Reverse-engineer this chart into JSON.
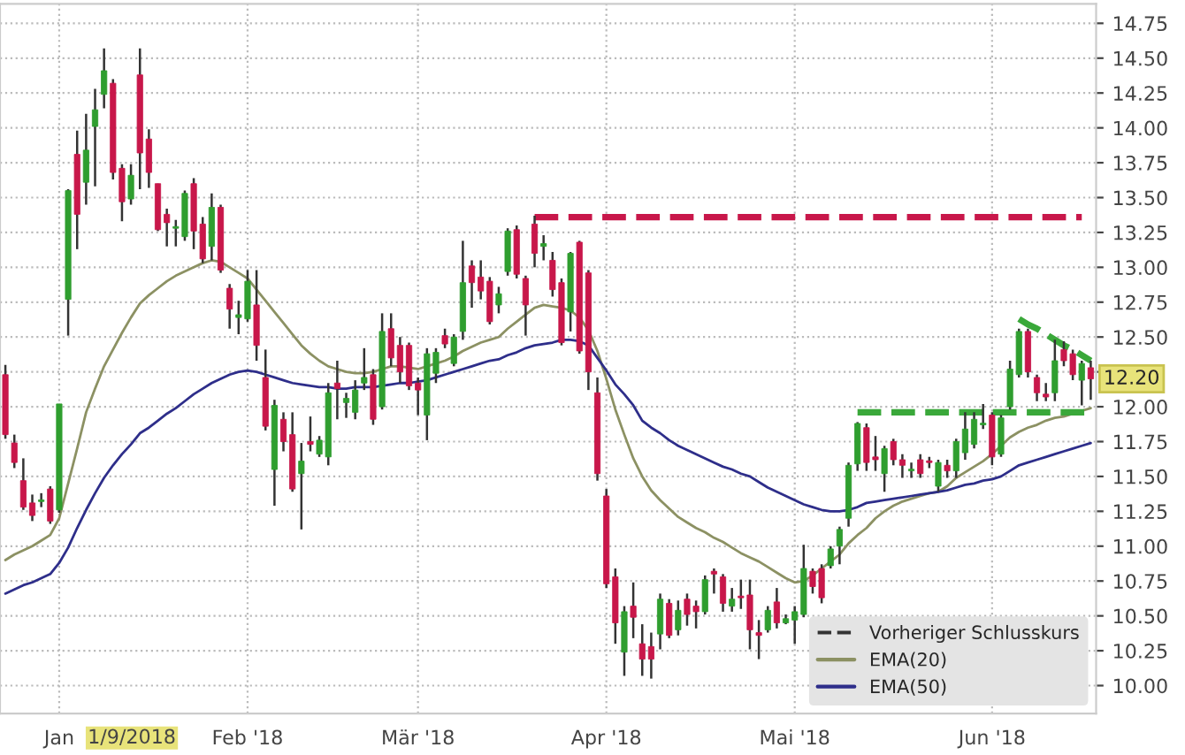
{
  "chart_data": {
    "type": "candlestick",
    "categories": [
      null,
      null,
      null,
      null,
      null,
      null,
      "Jan",
      null,
      null,
      null,
      null,
      null,
      null,
      null,
      null,
      null,
      null,
      null,
      null,
      null,
      null,
      null,
      null,
      null,
      null,
      null,
      null,
      "Feb '18",
      null,
      null,
      null,
      null,
      null,
      null,
      null,
      null,
      null,
      null,
      null,
      null,
      null,
      null,
      null,
      null,
      null,
      null,
      "Mär '18",
      null,
      null,
      null,
      null,
      null,
      null,
      null,
      null,
      null,
      null,
      null,
      null,
      null,
      null,
      null,
      null,
      null,
      null,
      null,
      null,
      "Apr '18",
      null,
      null,
      null,
      null,
      null,
      null,
      null,
      null,
      null,
      null,
      null,
      null,
      null,
      null,
      null,
      null,
      null,
      null,
      null,
      null,
      "Mai '18",
      null,
      null,
      null,
      null,
      null,
      null,
      null,
      null,
      null,
      null,
      null,
      null,
      null,
      null,
      null,
      null,
      null,
      null,
      null,
      null,
      null,
      "Jun '18",
      null,
      null,
      null,
      null,
      null,
      null,
      null,
      null,
      null,
      null,
      null
    ],
    "ohlc": [
      [
        12.23,
        12.3,
        11.77,
        11.8
      ],
      [
        11.74,
        11.8,
        11.56,
        11.6
      ],
      [
        11.47,
        11.63,
        11.26,
        11.28
      ],
      [
        11.31,
        11.37,
        11.18,
        11.22
      ],
      [
        11.32,
        11.38,
        11.28,
        11.33
      ],
      [
        11.41,
        11.43,
        11.16,
        11.18
      ],
      [
        11.26,
        12.02,
        11.24,
        12.02
      ],
      [
        12.77,
        13.56,
        12.51,
        13.55
      ],
      [
        13.81,
        13.98,
        13.13,
        13.38
      ],
      [
        13.61,
        14.1,
        13.45,
        13.84
      ],
      [
        14.01,
        14.28,
        13.58,
        14.13
      ],
      [
        14.24,
        14.57,
        14.14,
        14.41
      ],
      [
        14.32,
        14.35,
        13.63,
        13.68
      ],
      [
        13.71,
        13.74,
        13.33,
        13.47
      ],
      [
        13.49,
        13.74,
        13.45,
        13.66
      ],
      [
        14.38,
        14.57,
        13.56,
        13.82
      ],
      [
        13.92,
        13.99,
        13.57,
        13.68
      ],
      [
        13.6,
        13.6,
        13.26,
        13.27
      ],
      [
        13.38,
        13.42,
        13.15,
        13.32
      ],
      [
        13.28,
        13.34,
        13.15,
        13.29
      ],
      [
        13.22,
        13.55,
        13.19,
        13.53
      ],
      [
        13.6,
        13.64,
        13.13,
        13.26
      ],
      [
        13.31,
        13.36,
        13.03,
        13.06
      ],
      [
        13.15,
        13.53,
        13.05,
        13.43
      ],
      [
        13.43,
        13.45,
        12.96,
        12.98
      ],
      [
        12.85,
        12.88,
        12.56,
        12.7
      ],
      [
        12.64,
        12.76,
        12.52,
        12.66
      ],
      [
        12.63,
        12.98,
        12.61,
        12.9
      ],
      [
        12.73,
        12.98,
        12.33,
        12.44
      ],
      [
        12.21,
        12.41,
        11.83,
        11.86
      ],
      [
        11.55,
        12.05,
        11.29,
        12.01
      ],
      [
        11.91,
        11.96,
        11.68,
        11.75
      ],
      [
        11.8,
        11.96,
        11.39,
        11.41
      ],
      [
        11.52,
        11.74,
        11.12,
        11.61
      ],
      [
        11.75,
        11.93,
        11.68,
        11.73
      ],
      [
        11.66,
        11.79,
        11.64,
        11.76
      ],
      [
        11.64,
        12.17,
        11.58,
        12.1
      ],
      [
        12.17,
        12.33,
        11.91,
        12.13
      ],
      [
        12.03,
        12.1,
        11.92,
        12.06
      ],
      [
        11.96,
        12.19,
        11.91,
        12.12
      ],
      [
        12.17,
        12.42,
        12.12,
        12.21
      ],
      [
        12.23,
        12.27,
        11.87,
        11.91
      ],
      [
        12.0,
        12.67,
        11.98,
        12.54
      ],
      [
        12.56,
        12.67,
        12.29,
        12.35
      ],
      [
        12.44,
        12.5,
        12.17,
        12.25
      ],
      [
        12.44,
        12.46,
        12.12,
        12.15
      ],
      [
        12.17,
        12.21,
        11.94,
        12.12
      ],
      [
        11.94,
        12.42,
        11.76,
        12.38
      ],
      [
        12.24,
        12.42,
        12.17,
        12.39
      ],
      [
        12.51,
        12.56,
        12.42,
        12.45
      ],
      [
        12.31,
        12.52,
        12.29,
        12.5
      ],
      [
        12.54,
        13.19,
        12.48,
        12.89
      ],
      [
        13.01,
        13.05,
        12.71,
        12.89
      ],
      [
        12.93,
        13.05,
        12.77,
        12.83
      ],
      [
        12.9,
        12.93,
        12.59,
        12.61
      ],
      [
        12.73,
        12.86,
        12.67,
        12.81
      ],
      [
        12.97,
        13.28,
        12.94,
        13.26
      ],
      [
        13.27,
        13.3,
        12.92,
        12.95
      ],
      [
        12.92,
        12.94,
        12.51,
        12.73
      ],
      [
        13.31,
        13.37,
        13.0,
        13.1
      ],
      [
        13.15,
        13.23,
        13.05,
        13.17
      ],
      [
        13.05,
        13.11,
        12.79,
        12.84
      ],
      [
        12.89,
        12.92,
        12.44,
        12.46
      ],
      [
        12.68,
        13.11,
        12.54,
        13.1
      ],
      [
        13.18,
        13.19,
        12.38,
        12.4
      ],
      [
        12.96,
        12.98,
        12.12,
        12.25
      ],
      [
        12.1,
        12.21,
        11.47,
        11.52
      ],
      [
        11.36,
        11.41,
        10.7,
        10.73
      ],
      [
        10.78,
        10.84,
        10.3,
        10.45
      ],
      [
        10.24,
        10.57,
        10.07,
        10.53
      ],
      [
        10.57,
        10.74,
        10.34,
        10.49
      ],
      [
        10.3,
        10.44,
        10.07,
        10.19
      ],
      [
        10.28,
        10.38,
        10.05,
        10.19
      ],
      [
        10.37,
        10.66,
        10.26,
        10.62
      ],
      [
        10.59,
        10.62,
        10.34,
        10.36
      ],
      [
        10.4,
        10.61,
        10.36,
        10.54
      ],
      [
        10.62,
        10.66,
        10.43,
        10.51
      ],
      [
        10.57,
        10.61,
        10.41,
        10.53
      ],
      [
        10.53,
        10.79,
        10.51,
        10.76
      ],
      [
        10.82,
        10.84,
        10.66,
        10.8
      ],
      [
        10.78,
        10.8,
        10.53,
        10.59
      ],
      [
        10.57,
        10.7,
        10.53,
        10.62
      ],
      [
        10.64,
        10.76,
        10.55,
        10.63
      ],
      [
        10.65,
        10.76,
        10.26,
        10.4
      ],
      [
        10.38,
        10.47,
        10.19,
        10.36
      ],
      [
        10.4,
        10.57,
        10.38,
        10.54
      ],
      [
        10.6,
        10.7,
        10.41,
        10.45
      ],
      [
        10.45,
        10.51,
        10.44,
        10.48
      ],
      [
        10.47,
        10.57,
        10.3,
        10.53
      ],
      [
        10.51,
        11.01,
        10.49,
        10.84
      ],
      [
        10.82,
        10.84,
        10.66,
        10.71
      ],
      [
        10.84,
        10.87,
        10.59,
        10.63
      ],
      [
        10.86,
        11.0,
        10.84,
        10.98
      ],
      [
        11.0,
        11.14,
        10.87,
        11.12
      ],
      [
        11.2,
        11.6,
        11.14,
        11.58
      ],
      [
        11.59,
        11.89,
        11.54,
        11.88
      ],
      [
        11.85,
        11.88,
        11.54,
        11.6
      ],
      [
        11.64,
        11.79,
        11.54,
        11.62
      ],
      [
        11.52,
        11.72,
        11.39,
        11.7
      ],
      [
        11.75,
        11.77,
        11.58,
        11.62
      ],
      [
        11.62,
        11.66,
        11.49,
        11.58
      ],
      [
        11.54,
        11.6,
        11.49,
        11.55
      ],
      [
        11.62,
        11.66,
        11.49,
        11.52
      ],
      [
        11.61,
        11.64,
        11.56,
        11.6
      ],
      [
        11.43,
        11.62,
        11.39,
        11.6
      ],
      [
        11.58,
        11.62,
        11.49,
        11.54
      ],
      [
        11.54,
        11.77,
        11.49,
        11.75
      ],
      [
        11.67,
        11.96,
        11.62,
        11.84
      ],
      [
        11.73,
        11.96,
        11.7,
        11.91
      ],
      [
        11.87,
        12.02,
        11.84,
        11.88
      ],
      [
        11.94,
        11.96,
        11.58,
        11.64
      ],
      [
        11.66,
        11.94,
        11.64,
        11.92
      ],
      [
        12.0,
        12.33,
        11.98,
        12.27
      ],
      [
        12.23,
        12.56,
        12.21,
        12.54
      ],
      [
        12.54,
        12.56,
        12.21,
        12.25
      ],
      [
        12.21,
        12.23,
        12.04,
        12.1
      ],
      [
        12.09,
        12.17,
        12.04,
        12.07
      ],
      [
        12.1,
        12.48,
        12.04,
        12.33
      ],
      [
        12.41,
        12.47,
        12.29,
        12.33
      ],
      [
        12.38,
        12.41,
        12.19,
        12.23
      ],
      [
        12.19,
        12.33,
        12.01,
        12.31
      ],
      [
        12.28,
        12.33,
        12.05,
        12.2
      ]
    ],
    "series": [
      {
        "name": "Vorheriger Schlusskurs",
        "type": "line",
        "color": "#333333",
        "line_style": "dashed",
        "values": [
          null,
          null,
          null,
          null,
          null,
          null,
          null,
          null,
          null,
          null,
          null,
          null,
          null,
          null,
          null,
          null,
          null,
          null,
          null,
          null,
          null,
          null,
          null,
          null,
          null,
          null,
          null,
          null,
          null,
          null,
          null,
          null,
          null,
          null,
          null,
          null,
          null,
          null,
          null,
          null,
          null,
          null,
          null,
          null,
          null,
          null,
          null,
          null,
          null,
          null,
          null,
          null,
          null,
          null,
          null,
          null,
          null,
          null,
          null,
          null,
          null,
          null,
          null,
          null,
          null,
          null,
          null,
          null,
          null,
          null,
          null,
          null,
          null,
          null,
          null,
          null,
          null,
          null,
          null,
          null,
          null,
          null,
          null,
          null,
          null,
          null,
          null,
          null,
          null,
          null,
          null,
          null,
          null,
          null,
          null,
          null,
          null,
          null,
          null,
          null,
          null,
          null,
          null,
          null,
          null,
          null,
          null,
          null,
          null,
          null,
          null,
          null,
          null,
          null,
          null,
          null,
          null,
          null,
          null,
          null,
          null,
          null
        ]
      },
      {
        "name": "EMA(20)",
        "type": "line",
        "color": "#8c9163",
        "line_style": "solid",
        "values": [
          10.9,
          10.94,
          10.97,
          11.0,
          11.04,
          11.08,
          11.2,
          11.45,
          11.7,
          11.96,
          12.13,
          12.29,
          12.41,
          12.53,
          12.64,
          12.74,
          12.8,
          12.85,
          12.9,
          12.94,
          12.97,
          13.0,
          13.03,
          13.05,
          13.04,
          13.0,
          12.96,
          12.92,
          12.84,
          12.76,
          12.68,
          12.6,
          12.52,
          12.44,
          12.38,
          12.33,
          12.29,
          12.27,
          12.25,
          12.24,
          12.24,
          12.25,
          12.27,
          12.29,
          12.29,
          12.28,
          12.27,
          12.29,
          12.31,
          12.33,
          12.36,
          12.4,
          12.43,
          12.46,
          12.48,
          12.5,
          12.56,
          12.61,
          12.66,
          12.71,
          12.73,
          12.72,
          12.71,
          12.69,
          12.64,
          12.55,
          12.4,
          12.2,
          11.98,
          11.8,
          11.63,
          11.5,
          11.4,
          11.33,
          11.27,
          11.21,
          11.17,
          11.13,
          11.1,
          11.06,
          11.03,
          10.99,
          10.95,
          10.92,
          10.89,
          10.85,
          10.81,
          10.77,
          10.74,
          10.75,
          10.79,
          10.84,
          10.89,
          10.94,
          11.02,
          11.08,
          11.13,
          11.2,
          11.25,
          11.29,
          11.32,
          11.34,
          11.36,
          11.38,
          11.39,
          11.43,
          11.49,
          11.53,
          11.57,
          11.61,
          11.66,
          11.72,
          11.78,
          11.82,
          11.85,
          11.87,
          11.9,
          11.92,
          11.93,
          11.95,
          11.97,
          11.99
        ]
      },
      {
        "name": "EMA(50)",
        "type": "line",
        "color": "#2e2e8a",
        "line_style": "solid",
        "values": [
          10.66,
          10.69,
          10.72,
          10.74,
          10.77,
          10.8,
          10.88,
          10.99,
          11.13,
          11.26,
          11.38,
          11.49,
          11.58,
          11.66,
          11.73,
          11.81,
          11.85,
          11.9,
          11.95,
          11.99,
          12.04,
          12.09,
          12.13,
          12.17,
          12.2,
          12.23,
          12.25,
          12.26,
          12.25,
          12.23,
          12.21,
          12.19,
          12.17,
          12.16,
          12.15,
          12.14,
          12.14,
          12.13,
          12.13,
          12.14,
          12.14,
          12.14,
          12.15,
          12.16,
          12.17,
          12.17,
          12.18,
          12.19,
          12.21,
          12.23,
          12.25,
          12.27,
          12.29,
          12.31,
          12.33,
          12.34,
          12.37,
          12.39,
          12.42,
          12.44,
          12.45,
          12.46,
          12.48,
          12.48,
          12.47,
          12.44,
          12.35,
          12.26,
          12.16,
          12.09,
          12.01,
          11.9,
          11.85,
          11.81,
          11.76,
          11.72,
          11.69,
          11.66,
          11.63,
          11.6,
          11.57,
          11.55,
          11.52,
          11.5,
          11.46,
          11.42,
          11.39,
          11.36,
          11.33,
          11.3,
          11.28,
          11.26,
          11.25,
          11.25,
          11.26,
          11.28,
          11.31,
          11.32,
          11.33,
          11.34,
          11.35,
          11.36,
          11.37,
          11.38,
          11.39,
          11.4,
          11.42,
          11.44,
          11.45,
          11.47,
          11.48,
          11.5,
          11.54,
          11.58,
          11.6,
          11.62,
          11.64,
          11.66,
          11.68,
          11.7,
          11.72,
          11.74
        ]
      },
      {
        "type": "line",
        "color": "#c8174a",
        "line_style": "dashed",
        "values": [
          null,
          null,
          null,
          null,
          null,
          null,
          null,
          null,
          null,
          null,
          null,
          null,
          null,
          null,
          null,
          null,
          null,
          null,
          null,
          null,
          null,
          null,
          null,
          null,
          null,
          null,
          null,
          null,
          null,
          null,
          null,
          null,
          null,
          null,
          null,
          null,
          null,
          null,
          null,
          null,
          null,
          null,
          null,
          null,
          null,
          null,
          null,
          null,
          null,
          null,
          null,
          null,
          null,
          null,
          null,
          null,
          null,
          null,
          null,
          13.36,
          13.36,
          13.36,
          13.36,
          13.36,
          13.36,
          13.36,
          13.36,
          13.36,
          13.36,
          13.36,
          13.36,
          13.36,
          13.36,
          13.36,
          13.36,
          13.36,
          13.36,
          13.36,
          13.36,
          13.36,
          13.36,
          13.36,
          13.36,
          13.36,
          13.36,
          13.36,
          13.36,
          13.36,
          13.36,
          13.36,
          13.36,
          13.36,
          13.36,
          13.36,
          13.36,
          13.36,
          13.36,
          13.36,
          13.36,
          13.36,
          13.36,
          13.36,
          13.36,
          13.36,
          13.36,
          13.36,
          13.36,
          13.36,
          13.36,
          13.36,
          13.36,
          13.36,
          13.36,
          13.36,
          13.36,
          13.36,
          13.36,
          13.36,
          13.36,
          13.36,
          13.36,
          null
        ]
      },
      {
        "type": "line",
        "color": "#3aa83a",
        "line_style": "dashed",
        "values": [
          null,
          null,
          null,
          null,
          null,
          null,
          null,
          null,
          null,
          null,
          null,
          null,
          null,
          null,
          null,
          null,
          null,
          null,
          null,
          null,
          null,
          null,
          null,
          null,
          null,
          null,
          null,
          null,
          null,
          null,
          null,
          null,
          null,
          null,
          null,
          null,
          null,
          null,
          null,
          null,
          null,
          null,
          null,
          null,
          null,
          null,
          null,
          null,
          null,
          null,
          null,
          null,
          null,
          null,
          null,
          null,
          null,
          null,
          null,
          null,
          null,
          null,
          null,
          null,
          null,
          null,
          null,
          null,
          null,
          null,
          null,
          null,
          null,
          null,
          null,
          null,
          null,
          null,
          null,
          null,
          null,
          null,
          null,
          null,
          null,
          null,
          null,
          null,
          null,
          null,
          null,
          null,
          null,
          null,
          null,
          11.96,
          11.96,
          11.96,
          11.96,
          11.96,
          11.96,
          11.96,
          11.96,
          11.96,
          11.96,
          11.96,
          11.96,
          11.96,
          11.96,
          11.96,
          11.96,
          11.96,
          11.96,
          11.96,
          11.96,
          11.96,
          11.96,
          11.96,
          11.96,
          11.96,
          11.96,
          11.96
        ]
      },
      {
        "type": "line",
        "color": "#3aa83a",
        "line_style": "dashed",
        "values": [
          null,
          null,
          null,
          null,
          null,
          null,
          null,
          null,
          null,
          null,
          null,
          null,
          null,
          null,
          null,
          null,
          null,
          null,
          null,
          null,
          null,
          null,
          null,
          null,
          null,
          null,
          null,
          null,
          null,
          null,
          null,
          null,
          null,
          null,
          null,
          null,
          null,
          null,
          null,
          null,
          null,
          null,
          null,
          null,
          null,
          null,
          null,
          null,
          null,
          null,
          null,
          null,
          null,
          null,
          null,
          null,
          null,
          null,
          null,
          null,
          null,
          null,
          null,
          null,
          null,
          null,
          null,
          null,
          null,
          null,
          null,
          null,
          null,
          null,
          null,
          null,
          null,
          null,
          null,
          null,
          null,
          null,
          null,
          null,
          null,
          null,
          null,
          null,
          null,
          null,
          null,
          null,
          null,
          null,
          null,
          null,
          null,
          null,
          null,
          null,
          null,
          null,
          null,
          null,
          null,
          null,
          null,
          null,
          null,
          null,
          null,
          null,
          null,
          12.63,
          12.59,
          12.56,
          12.52,
          12.48,
          12.44,
          12.41,
          12.37,
          12.33
        ]
      }
    ],
    "ylim": [
      9.8,
      14.89
    ],
    "yticks": [
      {
        "value": 10,
        "label": "10.00"
      },
      {
        "value": 10.25,
        "label": "10.25"
      },
      {
        "value": 10.5,
        "label": "10.50"
      },
      {
        "value": 10.75,
        "label": "10.75"
      },
      {
        "value": 11,
        "label": "11.00"
      },
      {
        "value": 11.25,
        "label": "11.25"
      },
      {
        "value": 11.5,
        "label": "11.50"
      },
      {
        "value": 11.75,
        "label": "11.75"
      },
      {
        "value": 12,
        "label": "12.00"
      },
      {
        "value": 12.25,
        "label": null
      },
      {
        "value": 12.5,
        "label": "12.50"
      },
      {
        "value": 12.75,
        "label": "12.75"
      },
      {
        "value": 13,
        "label": "13.00"
      },
      {
        "value": 13.25,
        "label": "13.25"
      },
      {
        "value": 13.5,
        "label": "13.50"
      },
      {
        "value": 13.75,
        "label": "13.75"
      },
      {
        "value": 14,
        "label": "14.00"
      },
      {
        "value": 14.25,
        "label": "14.25"
      },
      {
        "value": 14.5,
        "label": "14.50"
      },
      {
        "value": 14.75,
        "label": "14.75"
      }
    ],
    "grid": true,
    "legend": "bottom right",
    "annotations": [
      {
        "text": "12.20",
        "y": 12.2
      },
      "1/9/2018"
    ]
  }
}
